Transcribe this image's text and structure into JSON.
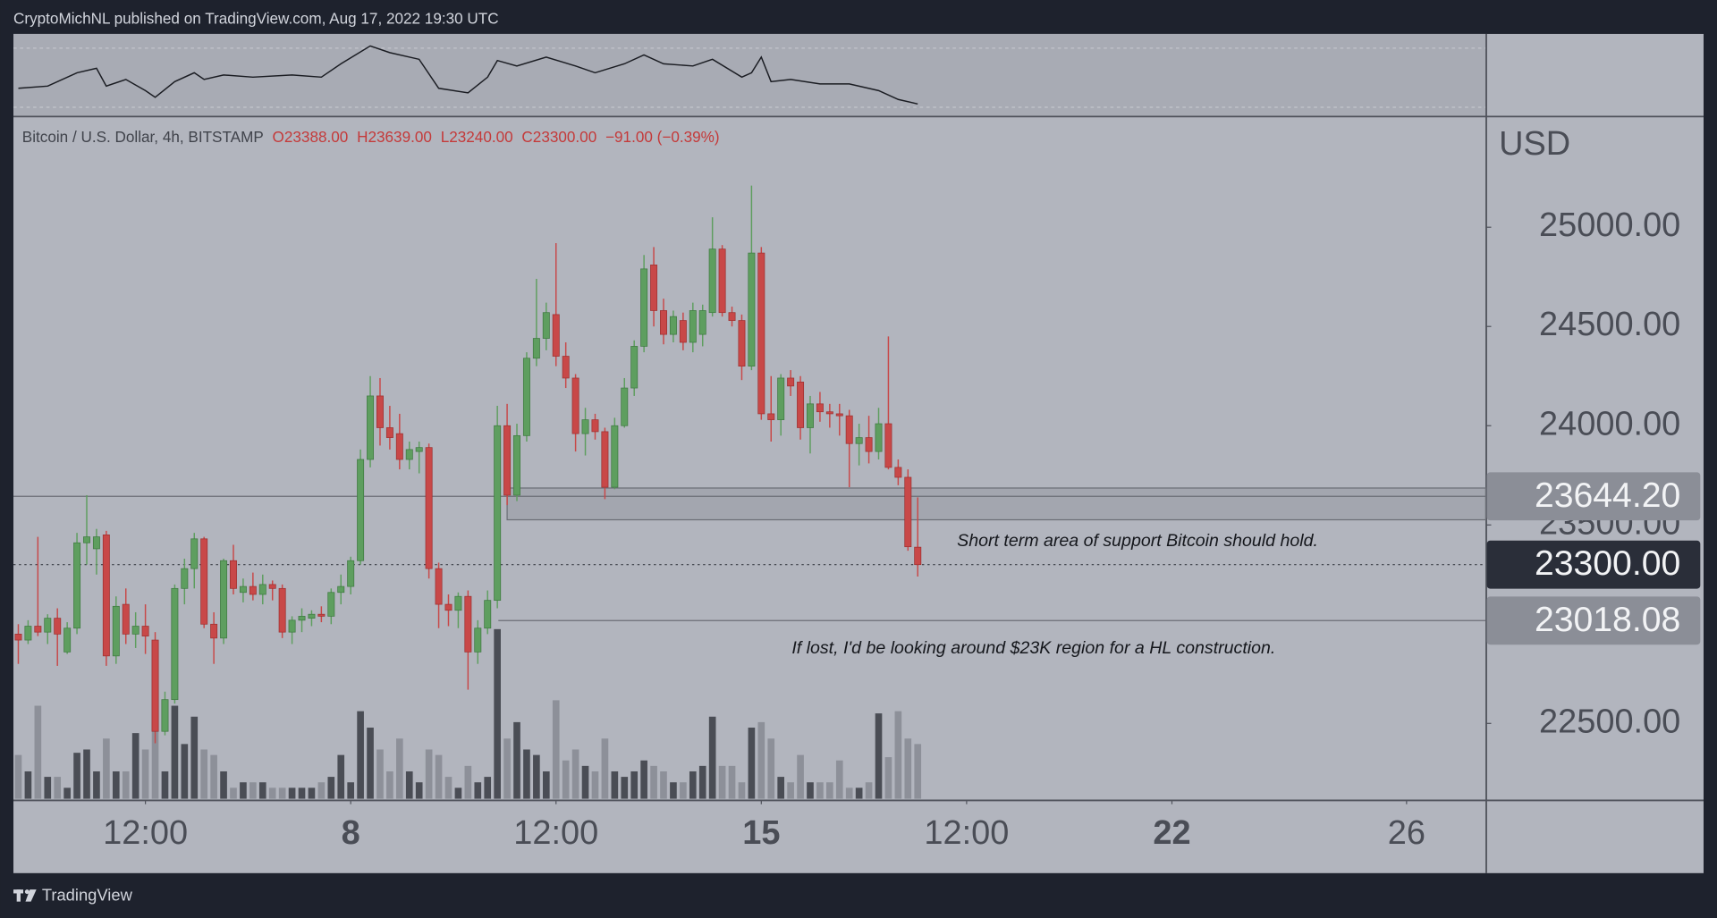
{
  "header": "CryptoMichNL published on TradingView.com, Aug 17, 2022 19:30 UTC",
  "footer": "TradingView",
  "chart_data": {
    "type": "candlestick",
    "title": "Bitcoin / U.S. Dollar, 4h, BITSTAMP",
    "ohlc_labels": [
      "O23388.00",
      "H23639.00",
      "L23240.00",
      "C23300.00"
    ],
    "change_label": "−91.00 (−0.39%)",
    "currency": "USD",
    "up_color": "#5e9e5f",
    "down_color": "#c84848",
    "volume_up_color": "#4a4d55",
    "volume_down_color": "#8d9099",
    "x": [
      -34,
      -33,
      -32,
      -31,
      -30,
      -29,
      -28,
      -27,
      -26,
      -25,
      -24,
      -23,
      -22,
      -21,
      -20,
      -19,
      -18,
      -17,
      -16,
      -15,
      -14,
      -13,
      -12,
      -11,
      -10,
      -9,
      -8,
      -7,
      -6,
      -5,
      -4,
      -3,
      -2,
      -1,
      0,
      1,
      2,
      3,
      4,
      5,
      6,
      7,
      8,
      9,
      10,
      11,
      12,
      13,
      14,
      15,
      16,
      17,
      18,
      19,
      20,
      21,
      22,
      23,
      24,
      25,
      26,
      27,
      28,
      29,
      30,
      31,
      32,
      33,
      34,
      35,
      36,
      37,
      38,
      39,
      40,
      41,
      42,
      43,
      44,
      45,
      46,
      47,
      48,
      49,
      50,
      51,
      52,
      53,
      54,
      55,
      56,
      57,
      58
    ],
    "candles": [
      [
        22950,
        23000,
        22800,
        22920
      ],
      [
        22920,
        23020,
        22900,
        22990
      ],
      [
        22990,
        23440,
        22940,
        22960
      ],
      [
        22960,
        23050,
        22900,
        23030
      ],
      [
        23030,
        23080,
        22790,
        22950
      ],
      [
        22860,
        23010,
        22850,
        22980
      ],
      [
        22980,
        23460,
        22950,
        23410
      ],
      [
        23410,
        23650,
        23300,
        23440
      ],
      [
        23380,
        23480,
        23250,
        23440
      ],
      [
        23450,
        23470,
        22790,
        22840
      ],
      [
        22840,
        23140,
        22800,
        23090
      ],
      [
        23100,
        23180,
        22900,
        22950
      ],
      [
        22950,
        23060,
        22880,
        22990
      ],
      [
        22990,
        23100,
        22850,
        22940
      ],
      [
        22920,
        22960,
        22400,
        22460
      ],
      [
        22460,
        22660,
        22440,
        22620
      ],
      [
        22620,
        23200,
        22600,
        23180
      ],
      [
        23180,
        23330,
        23100,
        23280
      ],
      [
        23280,
        23460,
        23180,
        23430
      ],
      [
        23430,
        23440,
        22980,
        23000
      ],
      [
        23000,
        23060,
        22800,
        22930
      ],
      [
        22930,
        23330,
        22900,
        23320
      ],
      [
        23320,
        23400,
        23150,
        23180
      ],
      [
        23160,
        23230,
        23110,
        23190
      ],
      [
        23190,
        23260,
        23120,
        23150
      ],
      [
        23150,
        23250,
        23100,
        23200
      ],
      [
        23200,
        23220,
        23120,
        23180
      ],
      [
        23180,
        23200,
        22930,
        22960
      ],
      [
        22960,
        23040,
        22900,
        23020
      ],
      [
        23020,
        23080,
        22960,
        23040
      ],
      [
        23030,
        23070,
        22990,
        23050
      ],
      [
        23050,
        23090,
        23010,
        23040
      ],
      [
        23040,
        23180,
        23000,
        23160
      ],
      [
        23160,
        23250,
        23100,
        23190
      ],
      [
        23190,
        23340,
        23150,
        23320
      ],
      [
        23320,
        23880,
        23300,
        23830
      ],
      [
        23830,
        24250,
        23790,
        24150
      ],
      [
        24150,
        24240,
        23900,
        23990
      ],
      [
        23990,
        24100,
        23880,
        23940
      ],
      [
        23960,
        24060,
        23780,
        23830
      ],
      [
        23830,
        23920,
        23780,
        23880
      ],
      [
        23870,
        23920,
        23760,
        23890
      ],
      [
        23890,
        23910,
        23230,
        23280
      ],
      [
        23280,
        23310,
        22980,
        23100
      ],
      [
        23100,
        23150,
        22990,
        23070
      ],
      [
        23070,
        23160,
        22980,
        23140
      ],
      [
        23140,
        23170,
        22670,
        22860
      ],
      [
        22860,
        23020,
        22800,
        22980
      ],
      [
        22980,
        23170,
        22950,
        23120
      ],
      [
        23120,
        24100,
        23080,
        24000
      ],
      [
        24000,
        24110,
        23600,
        23650
      ],
      [
        23650,
        24010,
        23620,
        23950
      ],
      [
        23950,
        24370,
        23920,
        24340
      ],
      [
        24340,
        24740,
        24300,
        24440
      ],
      [
        24440,
        24620,
        24380,
        24570
      ],
      [
        24560,
        24920,
        24300,
        24350
      ],
      [
        24350,
        24420,
        24190,
        24240
      ],
      [
        24240,
        24260,
        23870,
        23960
      ],
      [
        23960,
        24090,
        23850,
        24030
      ],
      [
        24030,
        24060,
        23930,
        23970
      ],
      [
        23970,
        23990,
        23630,
        23690
      ],
      [
        23690,
        24040,
        23680,
        24000
      ],
      [
        24000,
        24240,
        23990,
        24190
      ],
      [
        24190,
        24430,
        24150,
        24400
      ],
      [
        24400,
        24860,
        24370,
        24790
      ],
      [
        24810,
        24900,
        24500,
        24580
      ],
      [
        24580,
        24640,
        24410,
        24460
      ],
      [
        24460,
        24580,
        24420,
        24550
      ],
      [
        24530,
        24570,
        24380,
        24420
      ],
      [
        24420,
        24620,
        24370,
        24580
      ],
      [
        24460,
        24610,
        24400,
        24580
      ],
      [
        24570,
        25050,
        24550,
        24890
      ],
      [
        24890,
        24910,
        24550,
        24570
      ],
      [
        24570,
        24600,
        24500,
        24530
      ],
      [
        24530,
        24560,
        24230,
        24300
      ],
      [
        24300,
        25210,
        24280,
        24870
      ],
      [
        24870,
        24900,
        24030,
        24060
      ],
      [
        24060,
        24250,
        23920,
        24030
      ],
      [
        24030,
        24260,
        23950,
        24240
      ],
      [
        24240,
        24280,
        24150,
        24200
      ],
      [
        24220,
        24250,
        23930,
        23990
      ],
      [
        23990,
        24150,
        23860,
        24110
      ],
      [
        24110,
        24170,
        24020,
        24070
      ],
      [
        24070,
        24110,
        23990,
        24060
      ],
      [
        24060,
        24110,
        23950,
        24050
      ],
      [
        24050,
        24080,
        23690,
        23910
      ],
      [
        23910,
        24010,
        23800,
        23940
      ],
      [
        23940,
        24050,
        23810,
        23870
      ],
      [
        23870,
        24090,
        23830,
        24010
      ],
      [
        24010,
        24450,
        23780,
        23790
      ],
      [
        23790,
        23830,
        23700,
        23740
      ],
      [
        23740,
        23780,
        23370,
        23390
      ],
      [
        23388,
        23639,
        23240,
        23300
      ]
    ],
    "volume": [
      40,
      25,
      85,
      20,
      20,
      10,
      42,
      45,
      25,
      55,
      25,
      25,
      60,
      45,
      70,
      25,
      85,
      50,
      75,
      45,
      40,
      25,
      10,
      15,
      15,
      15,
      10,
      10,
      10,
      10,
      10,
      15,
      20,
      40,
      15,
      80,
      65,
      45,
      25,
      55,
      25,
      15,
      45,
      40,
      20,
      10,
      30,
      15,
      20,
      155,
      55,
      70,
      45,
      40,
      25,
      90,
      35,
      45,
      30,
      25,
      55,
      25,
      20,
      25,
      35,
      30,
      25,
      15,
      15,
      25,
      30,
      75,
      30,
      30,
      15,
      65,
      70,
      55,
      20,
      15,
      40,
      15,
      15,
      15,
      35,
      10,
      10,
      15,
      78,
      38,
      80,
      55,
      50
    ],
    "indicator": {
      "x": [
        -34,
        -31,
        -28,
        -26,
        -25,
        -23,
        -21,
        -20,
        -18,
        -16,
        -15,
        -13,
        -10,
        -6,
        -3,
        -1,
        2,
        4,
        7,
        9,
        12,
        14,
        15,
        17,
        20,
        23,
        25,
        28,
        30,
        32,
        35,
        37,
        40,
        41,
        42,
        43,
        45,
        48,
        51,
        54,
        56,
        58
      ],
      "values": [
        30,
        32,
        44,
        48,
        32,
        38,
        28,
        22,
        36,
        44,
        38,
        42,
        40,
        42,
        40,
        52,
        68,
        62,
        56,
        30,
        26,
        40,
        55,
        50,
        58,
        50,
        44,
        52,
        60,
        52,
        50,
        56,
        40,
        44,
        58,
        36,
        38,
        34,
        34,
        28,
        20,
        16
      ]
    },
    "xlim": [
      -34.5,
      116.1
    ],
    "xticks": [
      {
        "value": -21,
        "label": "12:00"
      },
      {
        "value": 0,
        "label": "8",
        "major": true
      },
      {
        "value": 21,
        "label": "12:00"
      },
      {
        "value": 42,
        "label": "15",
        "major": true
      },
      {
        "value": 63,
        "label": "12:00"
      },
      {
        "value": 84,
        "label": "22",
        "major": true
      },
      {
        "value": 108,
        "label": "26"
      }
    ],
    "ylim": [
      22115,
      25555
    ],
    "yticks": [
      {
        "value": 22500,
        "label": "22500.00"
      },
      {
        "value": 23500,
        "label": "23500.00"
      },
      {
        "value": 24000,
        "label": "24000.00"
      },
      {
        "value": 24500,
        "label": "24500.00"
      },
      {
        "value": 25000,
        "label": "25000.00"
      }
    ],
    "zone": [
      23526,
      23686
    ],
    "price_lines": [
      {
        "value": 23644.2,
        "label": "23644.20",
        "style": "solid",
        "label_color": "#8b8e97"
      },
      {
        "value": 23300,
        "label": "23300.00",
        "style": "dotted",
        "label_color": "#2a2e39"
      },
      {
        "value": 23018.08,
        "label": "23018.08",
        "style": "solid",
        "label_color": "#8b8e97"
      }
    ],
    "annotations": [
      "Short term area of support Bitcoin should hold.",
      "If lost, I'd be looking around $23K region for a HL construction."
    ]
  }
}
